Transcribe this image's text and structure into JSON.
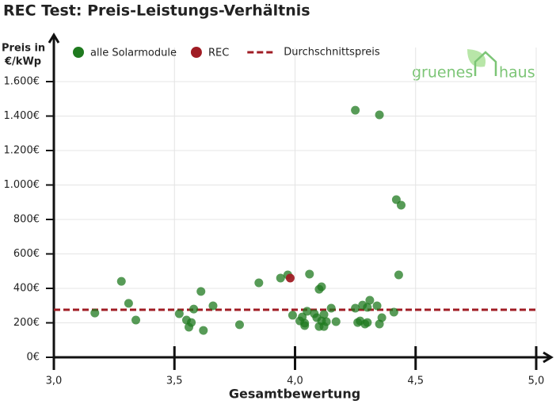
{
  "chart_data": {
    "type": "scatter",
    "title": "REC Test: Preis-Leistungs-Verhältnis",
    "y_label_lines": [
      "Preis in",
      "€/kWp"
    ],
    "x_label": "Gesamtbewertung",
    "logo": [
      "gruenes",
      "haus"
    ],
    "xlim": [
      3.0,
      5.0
    ],
    "ylim": [
      0,
      1600
    ],
    "xticks": [
      {
        "value": 3.0,
        "label": "3,0"
      },
      {
        "value": 3.5,
        "label": "3,5"
      },
      {
        "value": 4.0,
        "label": "4,0"
      },
      {
        "value": 4.5,
        "label": "4,5"
      },
      {
        "value": 5.0,
        "label": "5,0"
      }
    ],
    "yticks": [
      {
        "value": 0,
        "label": "0€"
      },
      {
        "value": 200,
        "label": "200€"
      },
      {
        "value": 400,
        "label": "400€"
      },
      {
        "value": 600,
        "label": "600€"
      },
      {
        "value": 800,
        "label": "800€"
      },
      {
        "value": 1000,
        "label": "1.000€"
      },
      {
        "value": 1200,
        "label": "1.200€"
      },
      {
        "value": 1400,
        "label": "1.400€"
      },
      {
        "value": 1600,
        "label": "1.600€"
      }
    ],
    "grid": true,
    "series": [
      {
        "name": "alle Solarmodule",
        "color": "#1f7a1f",
        "x": [
          3.17,
          3.28,
          3.31,
          3.34,
          3.52,
          3.55,
          3.56,
          3.57,
          3.58,
          3.61,
          3.62,
          3.66,
          3.77,
          3.85,
          3.94,
          3.97,
          3.99,
          4.02,
          4.03,
          4.04,
          4.04,
          4.05,
          4.06,
          4.08,
          4.09,
          4.1,
          4.11,
          4.1,
          4.11,
          4.12,
          4.12,
          4.13,
          4.15,
          4.17,
          4.25,
          4.25,
          4.26,
          4.27,
          4.28,
          4.29,
          4.3,
          4.3,
          4.31,
          4.34,
          4.35,
          4.35,
          4.36,
          4.41,
          4.42,
          4.43,
          4.44
        ],
        "values": [
          257,
          441,
          313,
          216,
          253,
          216,
          175,
          202,
          280,
          382,
          156,
          299,
          189,
          432,
          460,
          478,
          244,
          211,
          234,
          198,
          184,
          267,
          483,
          253,
          230,
          395,
          409,
          179,
          211,
          179,
          248,
          207,
          285,
          207,
          1434,
          285,
          202,
          211,
          303,
          193,
          290,
          202,
          331,
          299,
          193,
          1407,
          230,
          262,
          915,
          478,
          883
        ]
      },
      {
        "name": "REC",
        "color": "#a01c24",
        "x": [
          3.98
        ],
        "values": [
          460
        ]
      }
    ],
    "average": {
      "name": "Durchschnittspreis",
      "color": "#a01c24",
      "value": 276
    }
  }
}
